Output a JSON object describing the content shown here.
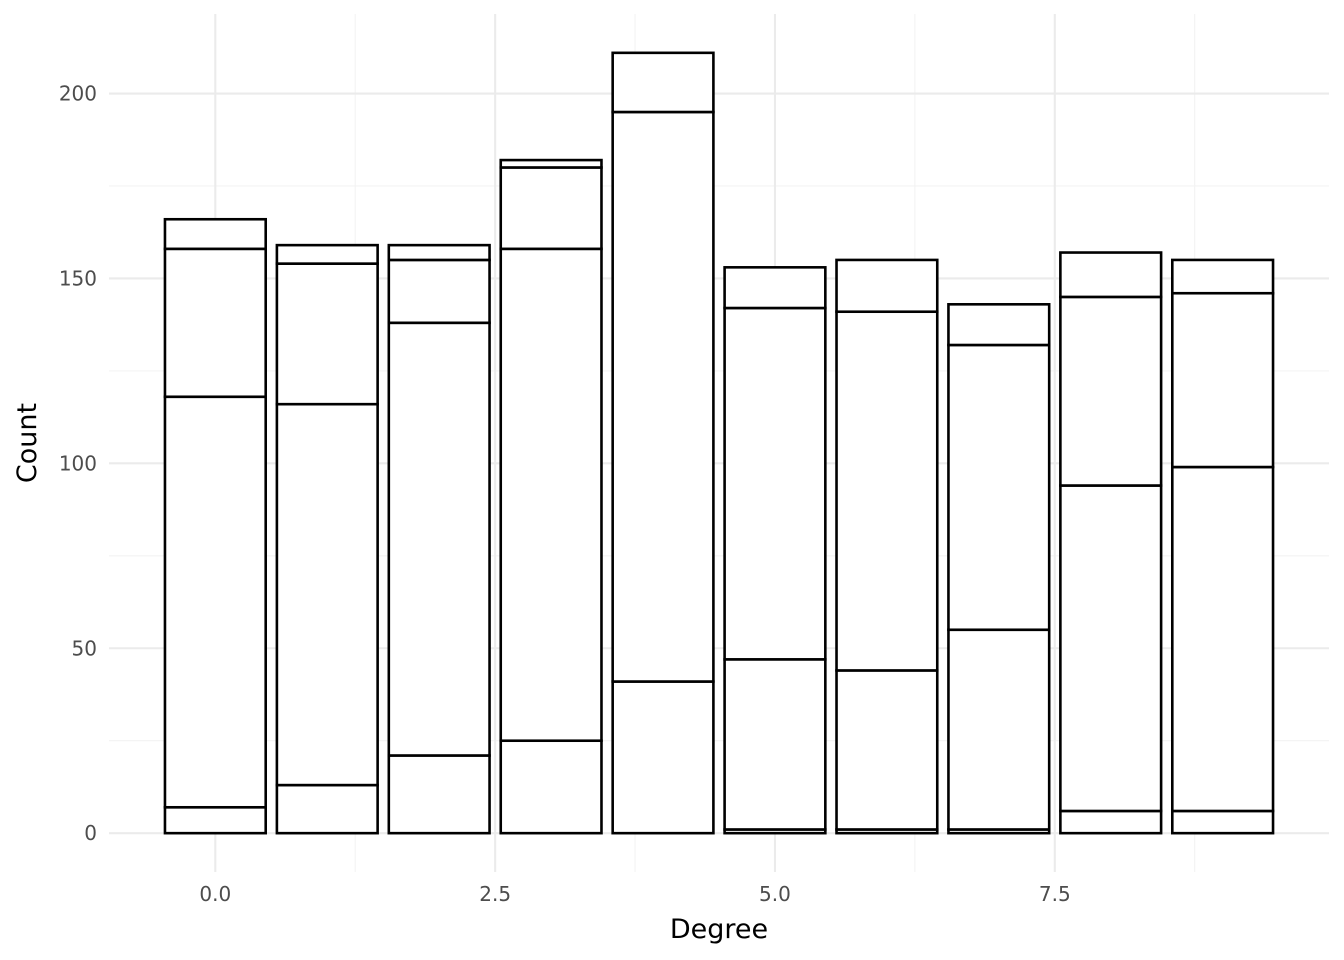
{
  "chart_data": {
    "type": "bar",
    "stacked": true,
    "title": "",
    "xlabel": "Degree",
    "ylabel": "Count",
    "x": [
      0,
      1,
      2,
      3,
      4,
      5,
      6,
      7,
      8,
      9
    ],
    "stack_boundaries": [
      [
        7,
        118,
        158,
        166
      ],
      [
        13,
        116,
        154,
        159
      ],
      [
        21,
        138,
        155,
        159
      ],
      [
        25,
        158,
        180,
        182
      ],
      [
        41,
        195,
        211
      ],
      [
        1,
        47,
        142,
        153
      ],
      [
        1,
        44,
        141,
        155
      ],
      [
        1,
        55,
        132,
        143
      ],
      [
        6,
        94,
        145,
        157
      ],
      [
        6,
        99,
        146,
        155
      ]
    ],
    "bar_width": 0.9,
    "xlim": [
      -0.95,
      9.95
    ],
    "ylim": [
      -10.5,
      221.5
    ],
    "x_ticks": [
      0,
      2.5,
      5,
      7.5
    ],
    "x_tick_labels": [
      "0.0",
      "2.5",
      "5.0",
      "7.5"
    ],
    "y_ticks": [
      0,
      50,
      100,
      150,
      200
    ],
    "y_tick_labels": [
      "0",
      "50",
      "100",
      "150",
      "200"
    ],
    "grid": true,
    "legend": "none",
    "colors": {
      "fill": "#ffffff",
      "outline": "#000000",
      "grid": "#ebebeb"
    }
  }
}
